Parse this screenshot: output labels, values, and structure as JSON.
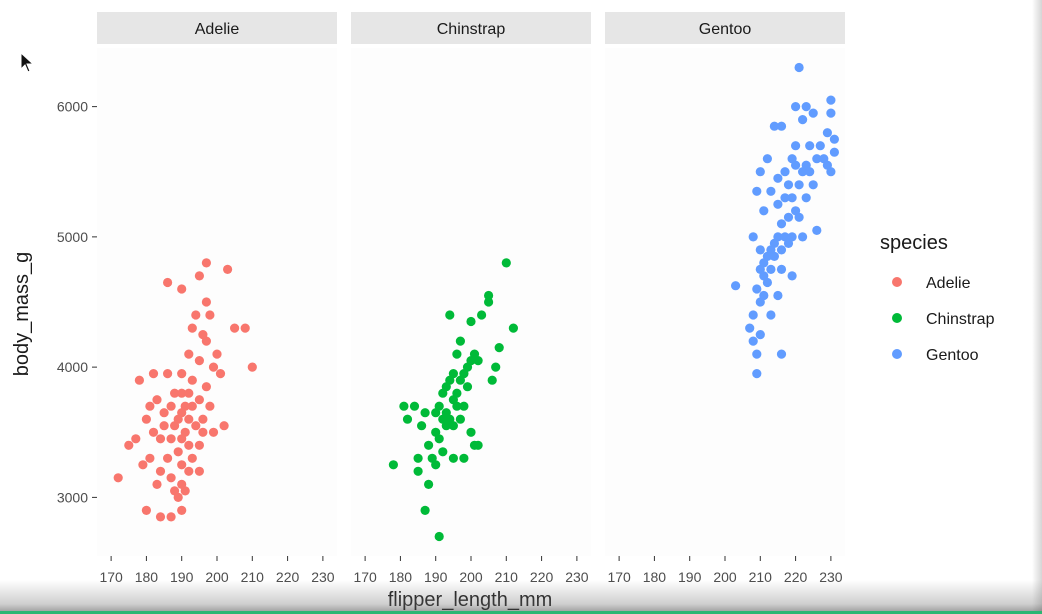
{
  "chart_data": {
    "type": "scatter",
    "facets": [
      "Adelie",
      "Chinstrap",
      "Gentoo"
    ],
    "xlabel": "flipper_length_mm",
    "ylabel": "body_mass_g",
    "xlim": [
      166,
      234
    ],
    "ylim": [
      2550,
      6450
    ],
    "xticks": [
      170,
      180,
      190,
      200,
      210,
      220,
      230
    ],
    "yticks": [
      3000,
      4000,
      5000,
      6000
    ],
    "legend": {
      "title": "species",
      "position": "right"
    },
    "grid": false,
    "series": [
      {
        "name": "Adelie",
        "color": "#F8766D",
        "points": [
          [
            172,
            3150
          ],
          [
            175,
            3400
          ],
          [
            177,
            3450
          ],
          [
            178,
            3900
          ],
          [
            179,
            3250
          ],
          [
            180,
            3600
          ],
          [
            180,
            2900
          ],
          [
            181,
            3700
          ],
          [
            181,
            3300
          ],
          [
            182,
            3950
          ],
          [
            182,
            3500
          ],
          [
            183,
            3100
          ],
          [
            183,
            3750
          ],
          [
            184,
            2850
          ],
          [
            184,
            3450
          ],
          [
            184,
            3200
          ],
          [
            185,
            3650
          ],
          [
            185,
            3550
          ],
          [
            186,
            3950
          ],
          [
            186,
            3300
          ],
          [
            186,
            4650
          ],
          [
            187,
            3700
          ],
          [
            187,
            3450
          ],
          [
            187,
            3150
          ],
          [
            187,
            2850
          ],
          [
            188,
            3800
          ],
          [
            188,
            3550
          ],
          [
            188,
            3050
          ],
          [
            189,
            3600
          ],
          [
            189,
            3350
          ],
          [
            189,
            3000
          ],
          [
            190,
            4600
          ],
          [
            190,
            3950
          ],
          [
            190,
            3800
          ],
          [
            190,
            3650
          ],
          [
            190,
            3450
          ],
          [
            190,
            3250
          ],
          [
            190,
            3100
          ],
          [
            190,
            2900
          ],
          [
            191,
            3700
          ],
          [
            191,
            3500
          ],
          [
            191,
            3050
          ],
          [
            192,
            4100
          ],
          [
            192,
            3800
          ],
          [
            192,
            3600
          ],
          [
            192,
            3400
          ],
          [
            192,
            3200
          ],
          [
            193,
            4300
          ],
          [
            193,
            3900
          ],
          [
            193,
            3700
          ],
          [
            193,
            3300
          ],
          [
            194,
            4400
          ],
          [
            194,
            3550
          ],
          [
            195,
            4700
          ],
          [
            195,
            4050
          ],
          [
            195,
            3750
          ],
          [
            195,
            3400
          ],
          [
            195,
            3200
          ],
          [
            196,
            4250
          ],
          [
            196,
            3600
          ],
          [
            196,
            3500
          ],
          [
            197,
            4800
          ],
          [
            197,
            4500
          ],
          [
            197,
            4200
          ],
          [
            197,
            3850
          ],
          [
            198,
            4400
          ],
          [
            198,
            3700
          ],
          [
            199,
            4000
          ],
          [
            199,
            3500
          ],
          [
            200,
            4100
          ],
          [
            201,
            3950
          ],
          [
            202,
            3550
          ],
          [
            203,
            4750
          ],
          [
            205,
            4300
          ],
          [
            208,
            4300
          ],
          [
            210,
            4000
          ]
        ]
      },
      {
        "name": "Chinstrap",
        "color": "#00BA38",
        "points": [
          [
            178,
            3250
          ],
          [
            181,
            3700
          ],
          [
            182,
            3600
          ],
          [
            184,
            3700
          ],
          [
            185,
            3200
          ],
          [
            185,
            3300
          ],
          [
            186,
            3550
          ],
          [
            187,
            3650
          ],
          [
            187,
            2900
          ],
          [
            188,
            3400
          ],
          [
            188,
            3100
          ],
          [
            189,
            3300
          ],
          [
            190,
            3500
          ],
          [
            190,
            3650
          ],
          [
            190,
            3250
          ],
          [
            191,
            3450
          ],
          [
            191,
            3700
          ],
          [
            191,
            2700
          ],
          [
            192,
            3600
          ],
          [
            192,
            3800
          ],
          [
            192,
            3350
          ],
          [
            193,
            3850
          ],
          [
            193,
            3550
          ],
          [
            193,
            3650
          ],
          [
            194,
            3900
          ],
          [
            194,
            3600
          ],
          [
            194,
            4400
          ],
          [
            195,
            3750
          ],
          [
            195,
            3550
          ],
          [
            195,
            3950
          ],
          [
            195,
            3300
          ],
          [
            196,
            3700
          ],
          [
            196,
            4100
          ],
          [
            196,
            3800
          ],
          [
            197,
            3900
          ],
          [
            197,
            3600
          ],
          [
            197,
            4200
          ],
          [
            198,
            3950
          ],
          [
            198,
            3700
          ],
          [
            198,
            3300
          ],
          [
            199,
            4000
          ],
          [
            199,
            3850
          ],
          [
            200,
            4050
          ],
          [
            200,
            4350
          ],
          [
            200,
            3500
          ],
          [
            201,
            4100
          ],
          [
            201,
            3400
          ],
          [
            202,
            4050
          ],
          [
            202,
            3400
          ],
          [
            203,
            4400
          ],
          [
            205,
            4500
          ],
          [
            205,
            4550
          ],
          [
            206,
            3900
          ],
          [
            207,
            4000
          ],
          [
            208,
            4150
          ],
          [
            210,
            4800
          ],
          [
            212,
            4300
          ]
        ]
      },
      {
        "name": "Gentoo",
        "color": "#619CFF",
        "points": [
          [
            203,
            4625
          ],
          [
            207,
            4300
          ],
          [
            208,
            4400
          ],
          [
            208,
            4200
          ],
          [
            208,
            5000
          ],
          [
            209,
            4600
          ],
          [
            209,
            4100
          ],
          [
            209,
            3950
          ],
          [
            209,
            5350
          ],
          [
            210,
            4750
          ],
          [
            210,
            4500
          ],
          [
            210,
            5500
          ],
          [
            210,
            4250
          ],
          [
            210,
            4900
          ],
          [
            211,
            4700
          ],
          [
            211,
            4800
          ],
          [
            211,
            4550
          ],
          [
            211,
            5200
          ],
          [
            212,
            4850
          ],
          [
            212,
            4650
          ],
          [
            212,
            5600
          ],
          [
            213,
            4900
          ],
          [
            213,
            4750
          ],
          [
            213,
            5350
          ],
          [
            213,
            4400
          ],
          [
            214,
            4950
          ],
          [
            214,
            4850
          ],
          [
            214,
            5850
          ],
          [
            215,
            5000
          ],
          [
            215,
            4550
          ],
          [
            215,
            5250
          ],
          [
            215,
            5450
          ],
          [
            216,
            4900
          ],
          [
            216,
            5100
          ],
          [
            216,
            4750
          ],
          [
            216,
            4100
          ],
          [
            216,
            5850
          ],
          [
            217,
            5000
          ],
          [
            217,
            5300
          ],
          [
            217,
            5500
          ],
          [
            218,
            4950
          ],
          [
            218,
            5400
          ],
          [
            218,
            5150
          ],
          [
            219,
            5600
          ],
          [
            219,
            5000
          ],
          [
            219,
            5300
          ],
          [
            219,
            4700
          ],
          [
            220,
            5200
          ],
          [
            220,
            5550
          ],
          [
            220,
            5700
          ],
          [
            220,
            6000
          ],
          [
            221,
            5150
          ],
          [
            221,
            5400
          ],
          [
            221,
            6300
          ],
          [
            222,
            5500
          ],
          [
            222,
            5900
          ],
          [
            222,
            5000
          ],
          [
            223,
            5300
          ],
          [
            223,
            5550
          ],
          [
            223,
            6000
          ],
          [
            224,
            5500
          ],
          [
            224,
            5700
          ],
          [
            225,
            5400
          ],
          [
            225,
            5950
          ],
          [
            226,
            5600
          ],
          [
            226,
            5050
          ],
          [
            227,
            5700
          ],
          [
            228,
            5600
          ],
          [
            229,
            5550
          ],
          [
            229,
            5800
          ],
          [
            230,
            5500
          ],
          [
            230,
            5950
          ],
          [
            230,
            6050
          ],
          [
            231,
            5750
          ],
          [
            231,
            5650
          ]
        ]
      }
    ]
  },
  "cursor": "arrow-cursor-icon"
}
